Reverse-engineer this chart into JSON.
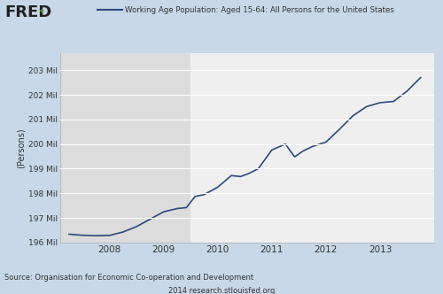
{
  "title": "Working Age Population: Aged 15-64: All Persons for the United States",
  "ylabel": "(Persons)",
  "source_text": "Source: Organisation for Economic Co-operation and Development",
  "watermark": "2014 research.stlouisfed.org",
  "line_color": "#2c4a7c",
  "background_color": "#c8d8e8",
  "plot_bg_color": "#f0efef",
  "shaded_region_color": "#dcdcdc",
  "ylim_min": 196000,
  "ylim_max": 203700,
  "yticks": [
    196000,
    197000,
    198000,
    199000,
    200000,
    201000,
    202000,
    203000
  ],
  "ytick_labels": [
    "196 Mil",
    "197 Mil",
    "198 Mil",
    "199 Mil",
    "200 Mil",
    "201 Mil",
    "202 Mil",
    "203 Mil"
  ],
  "shaded_start": 2007.0,
  "shaded_end": 2009.5,
  "x_data": [
    2007.25,
    2007.5,
    2007.75,
    2008.0,
    2008.25,
    2008.5,
    2008.75,
    2009.0,
    2009.25,
    2009.42,
    2009.58,
    2009.75,
    2010.0,
    2010.25,
    2010.42,
    2010.58,
    2010.75,
    2011.0,
    2011.25,
    2011.42,
    2011.58,
    2011.75,
    2012.0,
    2012.25,
    2012.5,
    2012.75,
    2013.0,
    2013.25,
    2013.5,
    2013.75
  ],
  "y_data": [
    196340,
    196295,
    196280,
    196290,
    196430,
    196650,
    196950,
    197250,
    197380,
    197420,
    197870,
    197950,
    198250,
    198720,
    198680,
    198810,
    199000,
    199760,
    200000,
    199480,
    199720,
    199900,
    200080,
    200600,
    201150,
    201520,
    201680,
    201730,
    202150,
    202700
  ],
  "xticks": [
    2008,
    2009,
    2010,
    2011,
    2012,
    2013
  ],
  "xlim_min": 2007.08,
  "xlim_max": 2014.0
}
